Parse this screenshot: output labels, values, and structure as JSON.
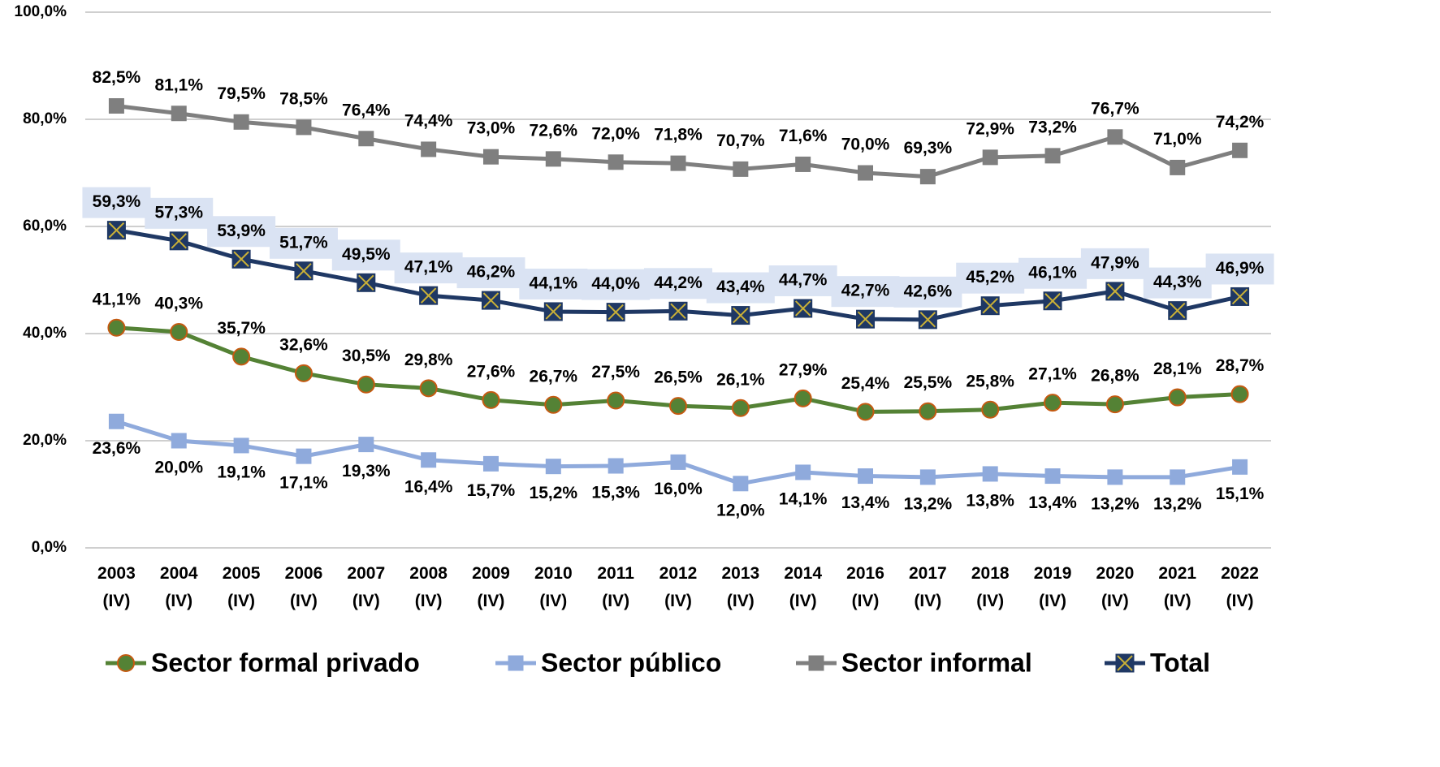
{
  "chart_data": {
    "type": "line",
    "categories": [
      "2003 (IV)",
      "2004 (IV)",
      "2005 (IV)",
      "2006 (IV)",
      "2007 (IV)",
      "2008 (IV)",
      "2009 (IV)",
      "2010 (IV)",
      "2011 (IV)",
      "2012 (IV)",
      "2013 (IV)",
      "2014 (IV)",
      "2016 (IV)",
      "2017 (IV)",
      "2018 (IV)",
      "2019 (IV)",
      "2020 (IV)",
      "2021 (IV)",
      "2022 (IV)"
    ],
    "ylim": [
      0,
      100
    ],
    "yticks": [
      {
        "value": 0,
        "label": "0,0%"
      },
      {
        "value": 20,
        "label": "20,0%"
      },
      {
        "value": 40,
        "label": "40,0%"
      },
      {
        "value": 60,
        "label": "60,0%"
      },
      {
        "value": 80,
        "label": "80,0%"
      },
      {
        "value": 100,
        "label": "100,0%"
      }
    ],
    "grid": true,
    "legend": "bottom",
    "series": [
      {
        "name": "Sector formal privado",
        "color": "#548235",
        "marker": "circle",
        "label_position": "above",
        "values": [
          41.1,
          40.3,
          35.7,
          32.6,
          30.5,
          29.8,
          27.6,
          26.7,
          27.5,
          26.5,
          26.1,
          27.9,
          25.4,
          25.5,
          25.8,
          27.1,
          26.8,
          28.1,
          28.7
        ],
        "value_labels": [
          "41,1%",
          "40,3%",
          "35,7%",
          "32,6%",
          "30,5%",
          "29,8%",
          "27,6%",
          "26,7%",
          "27,5%",
          "26,5%",
          "26,1%",
          "27,9%",
          "25,4%",
          "25,5%",
          "25,8%",
          "27,1%",
          "26,8%",
          "28,1%",
          "28,7%"
        ]
      },
      {
        "name": "Sector público",
        "color": "#8faadc",
        "marker": "square",
        "label_position": "below",
        "values": [
          23.6,
          20.0,
          19.1,
          17.1,
          19.3,
          16.4,
          15.7,
          15.2,
          15.3,
          16.0,
          12.0,
          14.1,
          13.4,
          13.2,
          13.8,
          13.4,
          13.2,
          13.2,
          15.1
        ],
        "value_labels": [
          "23,6%",
          "20,0%",
          "19,1%",
          "17,1%",
          "19,3%",
          "16,4%",
          "15,7%",
          "15,2%",
          "15,3%",
          "16,0%",
          "12,0%",
          "14,1%",
          "13,4%",
          "13,2%",
          "13,8%",
          "13,4%",
          "13,2%",
          "13,2%",
          "15,1%"
        ]
      },
      {
        "name": "Sector informal",
        "color": "#7f7f7f",
        "marker": "square",
        "label_position": "above",
        "values": [
          82.5,
          81.1,
          79.5,
          78.5,
          76.4,
          74.4,
          73.0,
          72.6,
          72.0,
          71.8,
          70.7,
          71.6,
          70.0,
          69.3,
          72.9,
          73.2,
          76.7,
          71.0,
          74.2
        ],
        "value_labels": [
          "82,5%",
          "81,1%",
          "79,5%",
          "78,5%",
          "76,4%",
          "74,4%",
          "73,0%",
          "72,6%",
          "72,0%",
          "71,8%",
          "70,7%",
          "71,6%",
          "70,0%",
          "69,3%",
          "72,9%",
          "73,2%",
          "76,7%",
          "71,0%",
          "74,2%"
        ]
      },
      {
        "name": "Total",
        "color": "#1f3864",
        "marker": "x-square",
        "label_position": "above",
        "label_background": "#dae3f3",
        "values": [
          59.3,
          57.3,
          53.9,
          51.7,
          49.5,
          47.1,
          46.2,
          44.1,
          44.0,
          44.2,
          43.4,
          44.7,
          42.7,
          42.6,
          45.2,
          46.1,
          47.9,
          44.3,
          46.9
        ],
        "value_labels": [
          "59,3%",
          "57,3%",
          "53,9%",
          "51,7%",
          "49,5%",
          "47,1%",
          "46,2%",
          "44,1%",
          "44,0%",
          "44,2%",
          "43,4%",
          "44,7%",
          "42,7%",
          "42,6%",
          "45,2%",
          "46,1%",
          "47,9%",
          "44,3%",
          "46,9%"
        ]
      }
    ]
  }
}
